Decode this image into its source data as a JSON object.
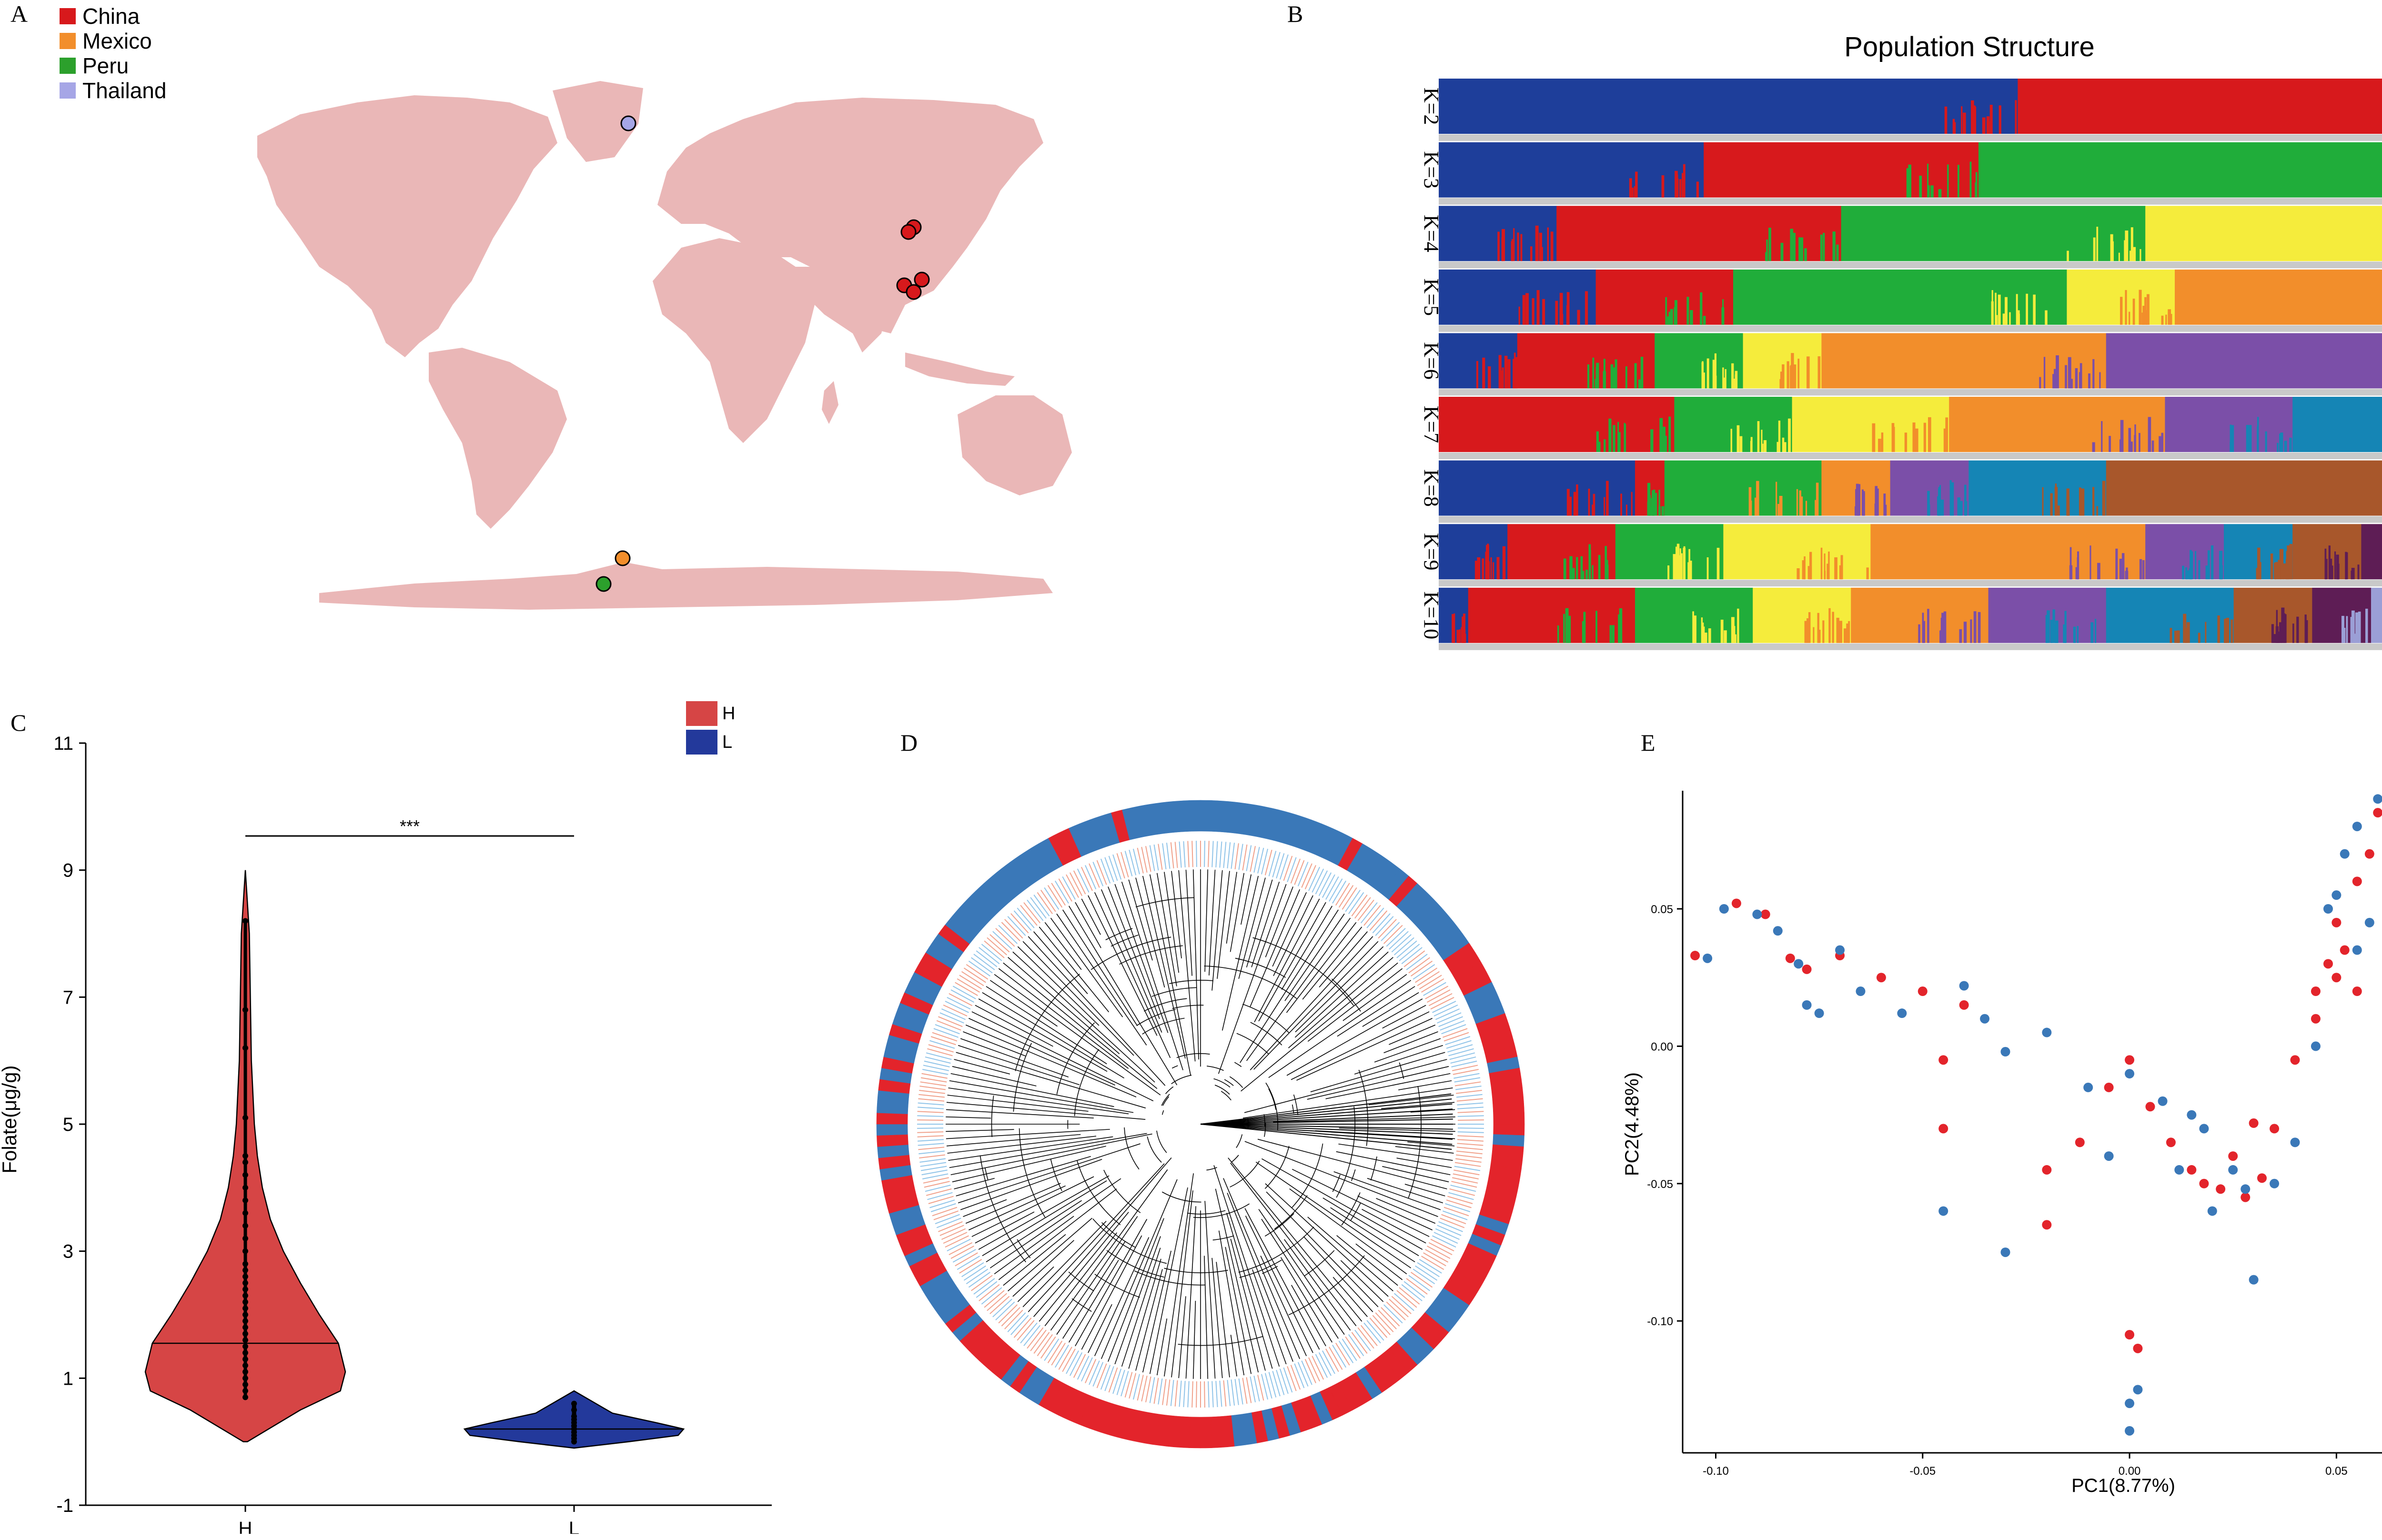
{
  "panels": {
    "a": "A",
    "b": "B",
    "c": "C",
    "d": "D",
    "e": "E"
  },
  "map": {
    "legend": [
      {
        "label": "China",
        "color": "#d7191c"
      },
      {
        "label": "Mexico",
        "color": "#f28e2b"
      },
      {
        "label": "Peru",
        "color": "#2ca02c"
      },
      {
        "label": "Thailand",
        "color": "#a6a6e6"
      }
    ],
    "land_color": "#eab7b7"
  },
  "chart_data": [
    {
      "type": "bar",
      "title": "Population Structure",
      "description_k": [
        "K=2",
        "K=3",
        "K=4",
        "K=5",
        "K=6",
        "K=7",
        "K=8",
        "K=9",
        "K=10"
      ],
      "palette": [
        "#1e3e9a",
        "#d7191c",
        "#20ad3a",
        "#f5ec3c",
        "#f28e2b",
        "#7b4fa8",
        "#1585b5",
        "#a8572b",
        "#5e1d55",
        "#9b9fd6"
      ],
      "rows": [
        {
          "label": "K=2",
          "segments": [
            [
              0,
              0.59
            ],
            [
              1,
              0.41
            ]
          ]
        },
        {
          "label": "K=3",
          "segments": [
            [
              0,
              0.27
            ],
            [
              1,
              0.28
            ],
            [
              2,
              0.45
            ]
          ]
        },
        {
          "label": "K=4",
          "segments": [
            [
              0,
              0.12
            ],
            [
              1,
              0.29
            ],
            [
              2,
              0.31
            ],
            [
              3,
              0.28
            ]
          ]
        },
        {
          "label": "K=5",
          "segments": [
            [
              0,
              0.16
            ],
            [
              1,
              0.14
            ],
            [
              2,
              0.34
            ],
            [
              3,
              0.11
            ],
            [
              4,
              0.25
            ]
          ]
        },
        {
          "label": "K=6",
          "segments": [
            [
              0,
              0.08
            ],
            [
              1,
              0.14
            ],
            [
              2,
              0.09
            ],
            [
              3,
              0.08
            ],
            [
              4,
              0.29
            ],
            [
              5,
              0.32
            ]
          ]
        },
        {
          "label": "K=7",
          "segments": [
            [
              1,
              0.24
            ],
            [
              2,
              0.12
            ],
            [
              3,
              0.16
            ],
            [
              4,
              0.22
            ],
            [
              5,
              0.13
            ],
            [
              6,
              0.13
            ]
          ]
        },
        {
          "label": "K=8",
          "segments": [
            [
              0,
              0.2
            ],
            [
              1,
              0.03
            ],
            [
              2,
              0.16
            ],
            [
              4,
              0.07
            ],
            [
              5,
              0.08
            ],
            [
              6,
              0.14
            ],
            [
              7,
              0.32
            ]
          ]
        },
        {
          "label": "K=9",
          "segments": [
            [
              0,
              0.07
            ],
            [
              1,
              0.11
            ],
            [
              2,
              0.11
            ],
            [
              3,
              0.15
            ],
            [
              4,
              0.28
            ],
            [
              5,
              0.08
            ],
            [
              6,
              0.07
            ],
            [
              7,
              0.07
            ],
            [
              8,
              0.06
            ]
          ]
        },
        {
          "label": "K=10",
          "segments": [
            [
              0,
              0.03
            ],
            [
              1,
              0.17
            ],
            [
              2,
              0.12
            ],
            [
              3,
              0.1
            ],
            [
              4,
              0.14
            ],
            [
              5,
              0.12
            ],
            [
              6,
              0.13
            ],
            [
              7,
              0.08
            ],
            [
              8,
              0.06
            ],
            [
              9,
              0.05
            ]
          ]
        }
      ]
    },
    {
      "type": "violin",
      "ylabel": "Folate(μg/g)",
      "ylim": [
        -1,
        11
      ],
      "yticks": [
        -1,
        1,
        3,
        5,
        7,
        9,
        11
      ],
      "categories": [
        "H",
        "L"
      ],
      "significance": "***",
      "legend": [
        {
          "label": "H",
          "color": "#d64545"
        },
        {
          "label": "L",
          "color": "#23399b"
        }
      ],
      "groups": [
        {
          "name": "H",
          "min": 0.0,
          "max": 9.0,
          "median": 1.55,
          "profile": [
            [
              0.0,
              0.02
            ],
            [
              0.5,
              0.55
            ],
            [
              0.8,
              0.95
            ],
            [
              1.1,
              1.0
            ],
            [
              1.55,
              0.93
            ],
            [
              2.0,
              0.74
            ],
            [
              2.5,
              0.55
            ],
            [
              3.0,
              0.38
            ],
            [
              3.5,
              0.25
            ],
            [
              4.0,
              0.17
            ],
            [
              4.5,
              0.12
            ],
            [
              5.0,
              0.09
            ],
            [
              6.0,
              0.06
            ],
            [
              7.0,
              0.05
            ],
            [
              8.0,
              0.04
            ],
            [
              9.0,
              0.0
            ]
          ],
          "points": [
            0.7,
            0.8,
            0.9,
            1.0,
            1.1,
            1.2,
            1.3,
            1.4,
            1.5,
            1.6,
            1.7,
            1.8,
            1.9,
            2.0,
            2.1,
            2.2,
            2.3,
            2.4,
            2.5,
            2.6,
            2.7,
            2.8,
            3.0,
            3.2,
            3.4,
            3.6,
            3.8,
            4.0,
            4.2,
            4.4,
            4.5,
            5.1,
            6.2,
            6.8,
            8.2
          ]
        },
        {
          "name": "L",
          "min": -0.1,
          "max": 0.8,
          "median": 0.2,
          "profile": [
            [
              -0.1,
              0.0
            ],
            [
              0.0,
              0.5
            ],
            [
              0.1,
              0.95
            ],
            [
              0.2,
              1.0
            ],
            [
              0.3,
              0.75
            ],
            [
              0.45,
              0.35
            ],
            [
              0.6,
              0.2
            ],
            [
              0.8,
              0.0
            ]
          ],
          "points": [
            0.0,
            0.05,
            0.1,
            0.15,
            0.2,
            0.25,
            0.3,
            0.35,
            0.4,
            0.5,
            0.6
          ]
        }
      ]
    },
    {
      "type": "scatter",
      "xlabel": "PC1(8.77%)",
      "ylabel": "PC2(4.48%)",
      "xlim": [
        -0.108,
        0.067
      ],
      "ylim": [
        -0.148,
        0.093
      ],
      "xticks": [
        -0.1,
        -0.05,
        0.0,
        0.05
      ],
      "yticks": [
        -0.1,
        -0.05,
        0.0,
        0.05
      ],
      "series": [
        {
          "name": "H",
          "color": "#e3242b",
          "points": [
            [
              -0.105,
              0.033
            ],
            [
              -0.095,
              0.052
            ],
            [
              -0.088,
              0.048
            ],
            [
              -0.082,
              0.032
            ],
            [
              -0.078,
              0.028
            ],
            [
              -0.07,
              0.033
            ],
            [
              -0.06,
              0.025
            ],
            [
              -0.05,
              0.02
            ],
            [
              -0.04,
              0.015
            ],
            [
              -0.045,
              -0.005
            ],
            [
              -0.045,
              -0.03
            ],
            [
              -0.02,
              -0.045
            ],
            [
              -0.02,
              -0.065
            ],
            [
              -0.012,
              -0.035
            ],
            [
              -0.005,
              -0.015
            ],
            [
              0.0,
              -0.005
            ],
            [
              0.0,
              -0.105
            ],
            [
              0.002,
              -0.11
            ],
            [
              0.005,
              -0.022
            ],
            [
              0.01,
              -0.035
            ],
            [
              0.015,
              -0.045
            ],
            [
              0.018,
              -0.05
            ],
            [
              0.022,
              -0.052
            ],
            [
              0.025,
              -0.04
            ],
            [
              0.028,
              -0.055
            ],
            [
              0.03,
              -0.028
            ],
            [
              0.032,
              -0.048
            ],
            [
              0.035,
              -0.03
            ],
            [
              0.04,
              -0.005
            ],
            [
              0.045,
              0.01
            ],
            [
              0.048,
              0.03
            ],
            [
              0.05,
              0.045
            ],
            [
              0.052,
              0.035
            ],
            [
              0.055,
              0.06
            ],
            [
              0.058,
              0.07
            ],
            [
              0.06,
              0.085
            ],
            [
              0.065,
              0.09
            ],
            [
              0.05,
              0.025
            ],
            [
              0.045,
              0.02
            ],
            [
              0.055,
              0.02
            ]
          ]
        },
        {
          "name": "L",
          "color": "#3a78b8",
          "points": [
            [
              -0.102,
              0.032
            ],
            [
              -0.098,
              0.05
            ],
            [
              -0.09,
              0.048
            ],
            [
              -0.085,
              0.042
            ],
            [
              -0.08,
              0.03
            ],
            [
              -0.078,
              0.015
            ],
            [
              -0.075,
              0.012
            ],
            [
              -0.07,
              0.035
            ],
            [
              -0.065,
              0.02
            ],
            [
              -0.055,
              0.012
            ],
            [
              -0.04,
              0.022
            ],
            [
              -0.035,
              0.01
            ],
            [
              -0.03,
              -0.002
            ],
            [
              -0.045,
              -0.06
            ],
            [
              -0.03,
              -0.075
            ],
            [
              -0.02,
              0.005
            ],
            [
              -0.01,
              -0.015
            ],
            [
              -0.005,
              -0.04
            ],
            [
              0.0,
              -0.01
            ],
            [
              0.0,
              -0.13
            ],
            [
              0.0,
              -0.14
            ],
            [
              0.002,
              -0.125
            ],
            [
              0.008,
              -0.02
            ],
            [
              0.012,
              -0.045
            ],
            [
              0.015,
              -0.025
            ],
            [
              0.018,
              -0.03
            ],
            [
              0.02,
              -0.06
            ],
            [
              0.025,
              -0.045
            ],
            [
              0.028,
              -0.052
            ],
            [
              0.03,
              -0.085
            ],
            [
              0.035,
              -0.05
            ],
            [
              0.04,
              -0.035
            ],
            [
              0.045,
              0.0
            ],
            [
              0.048,
              0.05
            ],
            [
              0.05,
              0.055
            ],
            [
              0.052,
              0.07
            ],
            [
              0.055,
              0.08
            ],
            [
              0.058,
              0.045
            ],
            [
              0.06,
              0.09
            ],
            [
              0.055,
              0.035
            ]
          ]
        }
      ]
    }
  ],
  "tree": {
    "ring_colors": [
      "#e3242b",
      "#3a78b8"
    ],
    "label_colors": [
      "#f0a08a",
      "#8fc3e8"
    ]
  }
}
